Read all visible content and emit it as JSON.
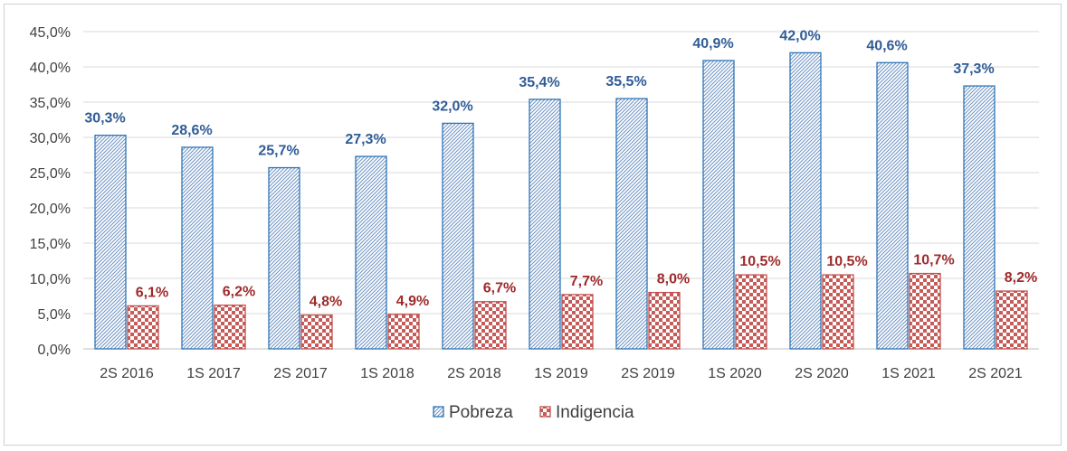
{
  "chart_data": {
    "type": "bar",
    "categories": [
      "2S 2016",
      "1S 2017",
      "2S 2017",
      "1S 2018",
      "2S 2018",
      "1S 2019",
      "2S 2019",
      "1S 2020",
      "2S 2020",
      "1S 2021",
      "2S 2021"
    ],
    "series": [
      {
        "name": "Pobreza",
        "values": [
          30.3,
          28.6,
          25.7,
          27.3,
          32.0,
          35.4,
          35.5,
          40.9,
          42.0,
          40.6,
          37.3
        ],
        "labels": [
          "30,3%",
          "28,6%",
          "25,7%",
          "27,3%",
          "32,0%",
          "35,4%",
          "35,5%",
          "40,9%",
          "42,0%",
          "40,6%",
          "37,3%"
        ],
        "color": "#2e75b6",
        "label_color": "#2f5c96"
      },
      {
        "name": "Indigencia",
        "values": [
          6.1,
          6.2,
          4.8,
          4.9,
          6.7,
          7.7,
          8.0,
          10.5,
          10.5,
          10.7,
          8.2
        ],
        "labels": [
          "6,1%",
          "6,2%",
          "4,8%",
          "4,9%",
          "6,7%",
          "7,7%",
          "8,0%",
          "10,5%",
          "10,5%",
          "10,7%",
          "8,2%"
        ],
        "color": "#c0504d",
        "label_color": "#9e2a2a"
      }
    ],
    "yticks": [
      "0,0%",
      "5,0%",
      "10,0%",
      "15,0%",
      "20,0%",
      "25,0%",
      "30,0%",
      "35,0%",
      "40,0%",
      "45,0%"
    ],
    "ylim": [
      0,
      45
    ],
    "grid": true,
    "legend_position": "bottom"
  }
}
